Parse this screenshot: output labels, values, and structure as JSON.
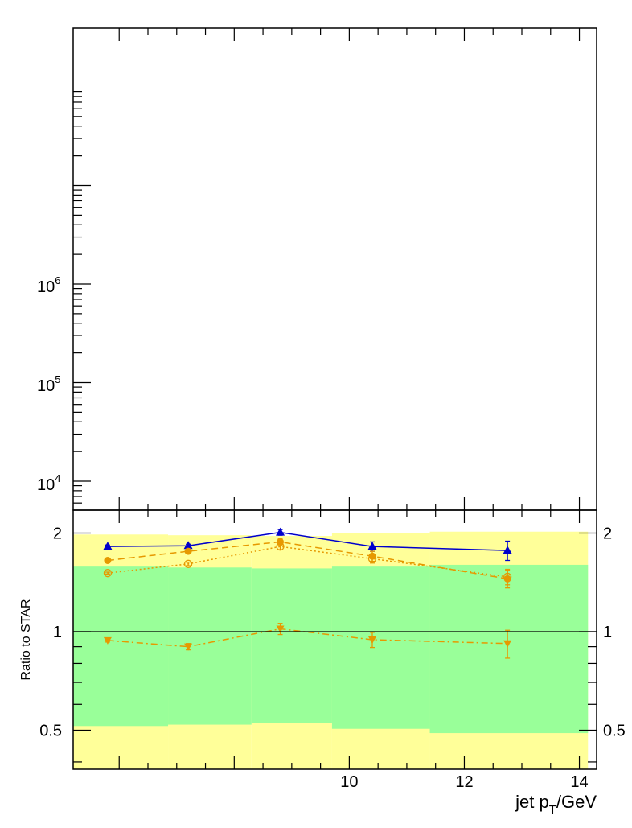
{
  "chart_data": [
    {
      "panel": "top",
      "type": "scatter",
      "y_scale": "log",
      "y_tick_labels": [
        {
          "value": 10000,
          "base": "10",
          "exp": "4"
        },
        {
          "value": 100000,
          "base": "10",
          "exp": "5"
        },
        {
          "value": 1000000,
          "base": "10",
          "exp": "6"
        }
      ],
      "series": []
    },
    {
      "panel": "ratio",
      "type": "line",
      "ylabel": "Ratio to STAR",
      "xlabel_parts": {
        "pre": "jet p",
        "sub": "T",
        "post": "/GeV"
      },
      "xlim": [
        5.2,
        14.3
      ],
      "ylim": [
        0.38,
        2.35
      ],
      "y_scale": "log",
      "x_tick_labels": [
        {
          "value": 10,
          "text": "10"
        },
        {
          "value": 12,
          "text": "12"
        },
        {
          "value": 14,
          "text": "14"
        }
      ],
      "y_tick_labels": [
        {
          "value": 0.5,
          "text": "0.5"
        },
        {
          "value": 1,
          "text": "1"
        },
        {
          "value": 2,
          "text": "2"
        }
      ],
      "reference_line": 1,
      "bands": [
        {
          "name": "outer",
          "color": "#ffff99",
          "bins": [
            {
              "x0": 5.15,
              "x1": 6.85,
              "lo": 0.375,
              "hi": 1.98
            },
            {
              "x0": 6.85,
              "x1": 8.3,
              "lo": 0.375,
              "hi": 1.97
            },
            {
              "x0": 8.3,
              "x1": 9.7,
              "lo": 0.375,
              "hi": 1.96
            },
            {
              "x0": 9.7,
              "x1": 11.4,
              "lo": 0.375,
              "hi": 2.0
            },
            {
              "x0": 11.4,
              "x1": 14.15,
              "lo": 0.375,
              "hi": 2.02
            }
          ]
        },
        {
          "name": "inner",
          "color": "#99ff99",
          "bins": [
            {
              "x0": 5.15,
              "x1": 6.85,
              "lo": 0.515,
              "hi": 1.58
            },
            {
              "x0": 6.85,
              "x1": 8.3,
              "lo": 0.52,
              "hi": 1.57
            },
            {
              "x0": 8.3,
              "x1": 9.7,
              "lo": 0.525,
              "hi": 1.56
            },
            {
              "x0": 9.7,
              "x1": 11.4,
              "lo": 0.505,
              "hi": 1.58
            },
            {
              "x0": 11.4,
              "x1": 14.15,
              "lo": 0.49,
              "hi": 1.6
            }
          ]
        }
      ],
      "x": [
        5.8,
        7.2,
        8.8,
        10.4,
        12.75
      ],
      "series": [
        {
          "color": "#0000cc",
          "marker": "triangle-up",
          "line": "solid",
          "values": [
            1.82,
            1.83,
            2.01,
            1.82,
            1.77
          ],
          "errors": [
            0.02,
            0.02,
            0.04,
            0.06,
            0.12
          ]
        },
        {
          "color": "#e69900",
          "marker": "circle-filled",
          "line": "dashed",
          "values": [
            1.65,
            1.76,
            1.88,
            1.7,
            1.45
          ],
          "errors": [
            0.01,
            0.02,
            0.04,
            0.06,
            0.09
          ]
        },
        {
          "color": "#e69900",
          "marker": "circle-open",
          "line": "dotted",
          "values": [
            1.51,
            1.61,
            1.82,
            1.67,
            1.47
          ],
          "errors": [
            0.01,
            0.02,
            0.04,
            0.05,
            0.08
          ]
        },
        {
          "color": "#e69900",
          "marker": "triangle-down",
          "line": "dashdot",
          "values": [
            0.94,
            0.9,
            1.02,
            0.945,
            0.92
          ],
          "errors": [
            0.01,
            0.02,
            0.04,
            0.05,
            0.09
          ]
        }
      ]
    }
  ]
}
